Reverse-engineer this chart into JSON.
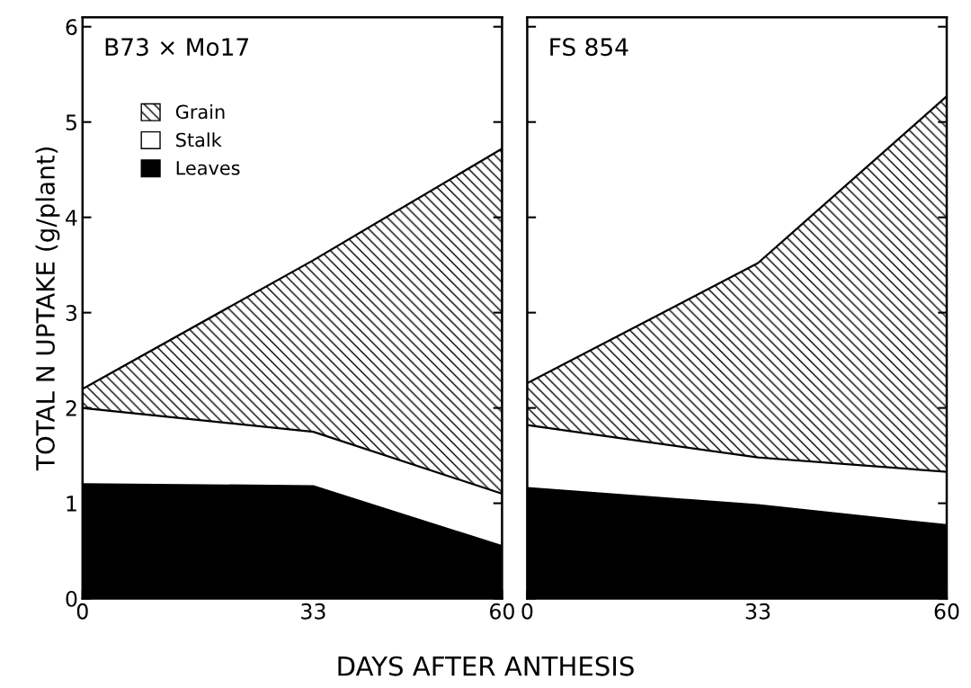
{
  "chart_data": [
    {
      "type": "area",
      "stacked": true,
      "title": "B73 × Mo17",
      "xlabel": "DAYS AFTER ANTHESIS",
      "ylabel": "TOTAL N UPTAKE (g/plant)",
      "x": [
        0,
        33,
        60
      ],
      "xlim": [
        0,
        60
      ],
      "xticks": [
        0,
        33,
        60
      ],
      "ylim": [
        0,
        6.1
      ],
      "yticks": [
        0,
        1,
        2,
        3,
        4,
        5,
        6
      ],
      "legend": "top left",
      "grid": false,
      "series": [
        {
          "name": "Leaves",
          "color": "#000000",
          "values": [
            1.2,
            1.18,
            0.55
          ]
        },
        {
          "name": "Stalk",
          "color": "#ffffff",
          "values": [
            0.8,
            0.57,
            0.55
          ]
        },
        {
          "name": "Grain",
          "color": "#ffffff",
          "values": [
            0.2,
            1.8,
            3.62
          ]
        }
      ]
    },
    {
      "type": "area",
      "stacked": true,
      "title": "FS 854",
      "x": [
        0,
        33,
        60
      ],
      "xlim": [
        0,
        60
      ],
      "xticks": [
        0,
        33,
        60
      ],
      "ylim": [
        0,
        6.1
      ],
      "yticks": [
        0,
        1,
        2,
        3,
        4,
        5,
        6
      ],
      "tick_labels": "x",
      "legend": false,
      "grid": false,
      "series": [
        {
          "color": "#000000",
          "values": [
            1.16,
            0.98,
            0.77
          ]
        },
        {
          "color": "#ffffff",
          "values": [
            0.66,
            0.5,
            0.56
          ]
        },
        {
          "color": "#ffffff",
          "values": [
            0.44,
            2.04,
            3.94
          ]
        }
      ]
    }
  ]
}
